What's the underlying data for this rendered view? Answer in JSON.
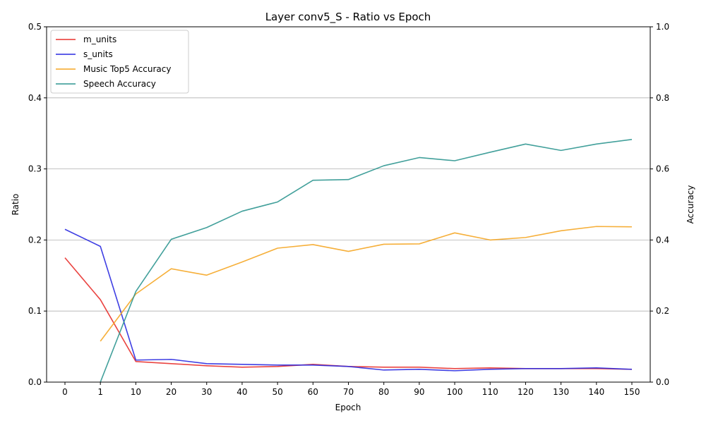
{
  "chart_data": {
    "type": "line",
    "title": "Layer conv5_S - Ratio vs Epoch",
    "xlabel": "Epoch",
    "ylabel": "Ratio",
    "ylabel_right": "Accuracy",
    "categories": [
      "0",
      "1",
      "10",
      "20",
      "30",
      "40",
      "50",
      "60",
      "70",
      "80",
      "90",
      "100",
      "110",
      "120",
      "130",
      "140",
      "150"
    ],
    "ylim": [
      0,
      0.5
    ],
    "ylim_right": [
      0,
      1.0
    ],
    "yticks": [
      "0.0",
      "0.1",
      "0.2",
      "0.3",
      "0.4",
      "0.5"
    ],
    "yticks_right": [
      "0.0",
      "0.2",
      "0.4",
      "0.6",
      "0.8",
      "1.0"
    ],
    "grid": "horizontal",
    "legend_position": "top-left",
    "series": [
      {
        "name": "m_units",
        "axis": "left",
        "color": "#e8302c",
        "values": [
          0.175,
          0.116,
          0.029,
          0.026,
          0.023,
          0.021,
          0.022,
          0.025,
          0.022,
          0.021,
          0.021,
          0.019,
          0.02,
          0.019,
          0.019,
          0.019,
          0.018
        ]
      },
      {
        "name": "s_units",
        "axis": "left",
        "color": "#2a2ae0",
        "values": [
          0.215,
          0.191,
          0.031,
          0.032,
          0.026,
          0.025,
          0.024,
          0.024,
          0.022,
          0.017,
          0.018,
          0.016,
          0.018,
          0.019,
          0.019,
          0.02,
          0.018
        ]
      },
      {
        "name": "Music Top5 Accuracy",
        "axis": "right",
        "color": "#f5a623",
        "values": [
          null,
          0.115,
          0.248,
          0.319,
          0.301,
          0.338,
          0.377,
          0.387,
          0.368,
          0.388,
          0.389,
          0.42,
          0.4,
          0.407,
          0.426,
          0.438,
          0.437
        ]
      },
      {
        "name": "Speech Accuracy",
        "axis": "right",
        "color": "#2e9690",
        "values": [
          null,
          0.0,
          0.255,
          0.402,
          0.435,
          0.481,
          0.507,
          0.568,
          0.57,
          0.609,
          0.632,
          0.623,
          0.647,
          0.67,
          0.652,
          0.67,
          0.683
        ]
      }
    ]
  }
}
